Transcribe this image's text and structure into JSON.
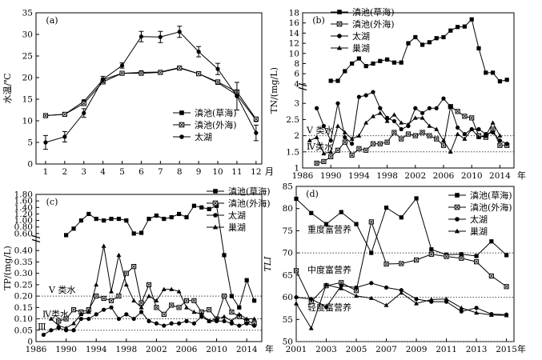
{
  "chart_data": [
    {
      "id": "a",
      "type": "line",
      "panel_label": "(a)",
      "xlabel": "月",
      "ylabel": "水温/℃",
      "xlim": [
        0.5,
        12.3
      ],
      "ylim": [
        0,
        35
      ],
      "xticks": [
        1,
        2,
        3,
        4,
        5,
        6,
        7,
        8,
        9,
        10,
        11,
        12
      ],
      "yticks": [
        0,
        5,
        10,
        15,
        20,
        25,
        30,
        35
      ],
      "legend_position": "lower-right",
      "series": [
        {
          "name": "滇池(草海)",
          "marker": "square",
          "x": [
            1,
            2,
            3,
            4,
            5,
            6,
            7,
            8,
            9,
            10,
            11,
            12
          ],
          "values": [
            11.2,
            11.5,
            14.5,
            19.5,
            21.0,
            21.2,
            21.3,
            22.3,
            20.9,
            18.8,
            16.0,
            10.2
          ]
        },
        {
          "name": "滇池(外海)",
          "marker": "square-open",
          "x": [
            1,
            2,
            3,
            4,
            5,
            6,
            7,
            8,
            9,
            10,
            11,
            12
          ],
          "values": [
            11.2,
            11.5,
            14.0,
            19.0,
            21.0,
            21.0,
            21.2,
            22.2,
            20.9,
            19.0,
            16.7,
            10.4
          ]
        },
        {
          "name": "太湖",
          "marker": "circle",
          "x": [
            1,
            2,
            3,
            4,
            5,
            6,
            7,
            8,
            9,
            10,
            11,
            12
          ],
          "values": [
            5.0,
            6.3,
            11.8,
            19.6,
            22.8,
            29.5,
            29.4,
            30.6,
            26.0,
            22.0,
            15.7,
            7.2
          ],
          "error": [
            1.6,
            1.2,
            1.0,
            0.7,
            0.6,
            1.2,
            1.3,
            1.3,
            1.2,
            1.3,
            3.2,
            1.8
          ]
        }
      ]
    },
    {
      "id": "b",
      "type": "line",
      "panel_label": "(b)",
      "xlabel": "年",
      "ylabel": "TN/(mg/L)",
      "xlim": [
        1986,
        2016
      ],
      "xticks": [
        1986,
        1990,
        1994,
        1998,
        2002,
        2006,
        2010,
        2014
      ],
      "y_axis_break": true,
      "ylim_lower": [
        1.0,
        3.5
      ],
      "yticks_lower": [
        1.0,
        1.5,
        2.0,
        2.5,
        3.0
      ],
      "ylim_upper": [
        3.5,
        18.0
      ],
      "yticks_upper": [
        4,
        6,
        8,
        10,
        12,
        14,
        16,
        18
      ],
      "legend_position": "top-left",
      "reference_lines": [
        {
          "label": "V 类水",
          "y": 2.0
        },
        {
          "label": "Ⅳ类水",
          "y": 1.5
        }
      ],
      "series": [
        {
          "name": "滇池(草海)",
          "marker": "square",
          "x": [
            1990,
            1991,
            1992,
            1993,
            1994,
            1995,
            1996,
            1997,
            1998,
            1999,
            2000,
            2001,
            2002,
            2003,
            2004,
            2005,
            2006,
            2007,
            2008,
            2009,
            2010,
            2011,
            2012,
            2013,
            2014,
            2015
          ],
          "values": [
            4.6,
            4.6,
            6.5,
            8.0,
            9.0,
            7.5,
            8.0,
            8.5,
            8.8,
            8.2,
            8.2,
            12.0,
            13.2,
            11.7,
            12.2,
            13.0,
            13.2,
            14.5,
            15.2,
            15.3,
            16.7,
            11.0,
            6.2,
            6.2,
            4.5,
            4.8
          ]
        },
        {
          "name": "滇池(外海)",
          "marker": "square-open",
          "x": [
            1988,
            1989,
            1990,
            1991,
            1992,
            1993,
            1994,
            1995,
            1996,
            1997,
            1998,
            1999,
            2000,
            2001,
            2002,
            2003,
            2004,
            2005,
            2006,
            2007,
            2008,
            2009,
            2010,
            2011,
            2012,
            2013,
            2014,
            2015
          ],
          "values": [
            1.15,
            1.2,
            1.35,
            1.55,
            1.8,
            1.4,
            1.6,
            1.55,
            1.75,
            1.75,
            1.8,
            2.1,
            1.9,
            2.05,
            2.0,
            2.1,
            2.0,
            1.9,
            1.7,
            2.9,
            2.75,
            2.6,
            2.55,
            2.0,
            1.95,
            2.2,
            1.7,
            1.7
          ]
        },
        {
          "name": "太湖",
          "marker": "circle",
          "x": [
            1988,
            1989,
            1990,
            1991,
            1992,
            1993,
            1994,
            1995,
            1996,
            1997,
            1998,
            1999,
            2000,
            2001,
            2002,
            2003,
            2004,
            2005,
            2006,
            2007,
            2008,
            2009,
            2010,
            2011,
            2012,
            2013,
            2014,
            2015
          ],
          "values": [
            2.85,
            2.3,
            1.85,
            3.0,
            1.95,
            1.75,
            3.2,
            3.25,
            3.35,
            2.85,
            2.55,
            2.45,
            2.2,
            2.3,
            2.85,
            2.7,
            2.85,
            2.85,
            3.15,
            2.9,
            2.25,
            2.05,
            2.2,
            2.2,
            2.05,
            2.1,
            1.85,
            1.75
          ]
        },
        {
          "name": "巢湖",
          "marker": "triangle",
          "x": [
            1987,
            1988,
            1989,
            1990,
            1991,
            1992,
            1993,
            1994,
            1995,
            1996,
            1997,
            1998,
            1999,
            2000,
            2001,
            2002,
            2003,
            2004,
            2005,
            2006,
            2007,
            2008,
            2009,
            2010,
            2011,
            2012,
            2013,
            2014
          ],
          "values": [
            1.85,
            1.95,
            1.45,
            1.5,
            2.3,
            2.1,
            1.9,
            2.0,
            2.4,
            2.6,
            2.7,
            2.45,
            2.65,
            2.4,
            2.35,
            2.55,
            2.55,
            2.3,
            2.2,
            1.85,
            1.5,
            2.05,
            1.9,
            2.2,
            1.95,
            2.0,
            2.4,
            2.0
          ]
        }
      ]
    },
    {
      "id": "c",
      "type": "line",
      "panel_label": "(c)",
      "xlabel": "年",
      "ylabel": "TP/(mg/L)",
      "xlim": [
        1986,
        2016
      ],
      "xticks": [
        1986,
        1990,
        1994,
        1998,
        2002,
        2006,
        2010,
        2014
      ],
      "y_axis_break": true,
      "ylim_lower": [
        0,
        0.45
      ],
      "yticks_lower": [
        0,
        0.05,
        0.1,
        0.15,
        0.2,
        0.25,
        0.3,
        0.35,
        0.4
      ],
      "ylim_upper": [
        0.45,
        1.8
      ],
      "yticks_upper": [
        0.6,
        0.8,
        1.0,
        1.2,
        1.4,
        1.6,
        1.8
      ],
      "legend_position": "top-right",
      "reference_lines": [
        {
          "label": "V 类水",
          "y": 0.2
        },
        {
          "label": "Ⅳ类水",
          "y": 0.1
        },
        {
          "label": "Ⅲ",
          "y": 0.05
        }
      ],
      "series": [
        {
          "name": "滇池(草海)",
          "marker": "square",
          "x": [
            1990,
            1991,
            1992,
            1993,
            1994,
            1995,
            1996,
            1997,
            1998,
            1999,
            2000,
            2001,
            2002,
            2003,
            2004,
            2005,
            2006,
            2007,
            2008,
            2009,
            2010,
            2011,
            2012,
            2013,
            2014,
            2015
          ],
          "values": [
            0.55,
            0.75,
            1.0,
            1.2,
            1.05,
            1.0,
            1.05,
            1.05,
            1.0,
            0.6,
            0.62,
            1.05,
            1.15,
            1.05,
            1.1,
            1.2,
            1.1,
            1.45,
            1.4,
            1.35,
            1.45,
            0.38,
            0.2,
            0.15,
            0.27,
            0.18
          ]
        },
        {
          "name": "滇池(外海)",
          "marker": "square-open",
          "x": [
            1989,
            1990,
            1991,
            1992,
            1993,
            1994,
            1995,
            1996,
            1997,
            1998,
            1999,
            2000,
            2001,
            2002,
            2003,
            2004,
            2005,
            2006,
            2007,
            2008,
            2009,
            2010,
            2011,
            2012,
            2013,
            2014,
            2015
          ],
          "values": [
            0.09,
            0.1,
            0.14,
            0.13,
            0.14,
            0.2,
            0.19,
            0.18,
            0.2,
            0.3,
            0.33,
            0.17,
            0.25,
            0.15,
            0.12,
            0.16,
            0.15,
            0.18,
            0.18,
            0.13,
            0.14,
            0.1,
            0.2,
            0.13,
            0.11,
            0.09,
            0.08
          ]
        },
        {
          "name": "太湖",
          "marker": "circle",
          "x": [
            1987,
            1988,
            1989,
            1990,
            1991,
            1992,
            1993,
            1994,
            1995,
            1996,
            1997,
            1998,
            1999,
            2000,
            2001,
            2002,
            2003,
            2004,
            2005,
            2006,
            2007,
            2008,
            2009,
            2010,
            2011,
            2012,
            2013,
            2014,
            2015
          ],
          "values": [
            0.03,
            0.05,
            0.06,
            0.05,
            0.05,
            0.1,
            0.1,
            0.12,
            0.14,
            0.15,
            0.1,
            0.12,
            0.1,
            0.13,
            0.09,
            0.08,
            0.07,
            0.08,
            0.08,
            0.09,
            0.08,
            0.11,
            0.09,
            0.09,
            0.09,
            0.08,
            0.07,
            0.08,
            0.07
          ]
        },
        {
          "name": "巢湖",
          "marker": "triangle",
          "x": [
            1988,
            1989,
            1990,
            1991,
            1992,
            1993,
            1994,
            1995,
            1996,
            1997,
            1998,
            1999,
            2000,
            2001,
            2002,
            2003,
            2004,
            2005,
            2006,
            2007,
            2008,
            2009,
            2010,
            2011,
            2012,
            2013,
            2014,
            2015
          ],
          "values": [
            0.1,
            0.07,
            0.06,
            0.08,
            0.12,
            0.13,
            0.25,
            0.42,
            0.22,
            0.38,
            0.25,
            0.18,
            0.15,
            0.2,
            0.18,
            0.23,
            0.23,
            0.22,
            0.15,
            0.13,
            0.12,
            0.09,
            0.1,
            0.11,
            0.09,
            0.12,
            0.1,
            0.1
          ]
        }
      ]
    },
    {
      "id": "d",
      "type": "line",
      "panel_label": "(d)",
      "xlabel": "年",
      "ylabel": "TLI",
      "xlim": [
        2001,
        2015.5
      ],
      "xticks": [
        2001,
        2003,
        2005,
        2007,
        2009,
        2011,
        2013,
        2015
      ],
      "ylim": [
        50,
        85
      ],
      "yticks": [
        50,
        55,
        60,
        65,
        70,
        75,
        80,
        85
      ],
      "legend_position": "top-right",
      "zone_lines": [
        70,
        60,
        50
      ],
      "zone_labels": [
        "重度富营养",
        "中度富营养",
        "轻度富营养"
      ],
      "series": [
        {
          "name": "滇池(草海)",
          "marker": "square",
          "x": [
            2001,
            2002,
            2003,
            2004,
            2005,
            2006,
            2007,
            2008,
            2009,
            2010,
            2011,
            2012,
            2013,
            2014,
            2015
          ],
          "values": [
            82.2,
            79.0,
            76.5,
            79.2,
            76.5,
            70.0,
            80.2,
            78.0,
            82.3,
            70.8,
            69.6,
            69.7,
            69.3,
            72.6,
            69.5
          ]
        },
        {
          "name": "滇池(外海)",
          "marker": "square-open",
          "x": [
            2001,
            2002,
            2003,
            2004,
            2005,
            2006,
            2007,
            2008,
            2009,
            2010,
            2011,
            2012,
            2013,
            2014,
            2015
          ],
          "values": [
            66.0,
            59.0,
            62.6,
            63.3,
            61.5,
            77.0,
            67.5,
            67.6,
            68.4,
            69.7,
            69.2,
            68.8,
            68.0,
            64.8,
            62.4
          ]
        },
        {
          "name": "太湖",
          "marker": "circle",
          "x": [
            2001,
            2002,
            2003,
            2004,
            2005,
            2006,
            2007,
            2008,
            2009,
            2010,
            2011,
            2012,
            2013,
            2014,
            2015
          ],
          "values": [
            60.0,
            59.6,
            57.8,
            62.6,
            62.2,
            63.2,
            62.2,
            61.6,
            59.6,
            59.0,
            59.0,
            56.8,
            57.6,
            56.2,
            56.1
          ]
        },
        {
          "name": "巢湖",
          "marker": "triangle",
          "x": [
            2001,
            2002,
            2003,
            2004,
            2005,
            2006,
            2007,
            2008,
            2009,
            2010,
            2011,
            2012,
            2013,
            2014,
            2015
          ],
          "values": [
            58.6,
            53.0,
            62.8,
            62.0,
            60.3,
            59.8,
            58.2,
            61.0,
            58.6,
            59.5,
            59.6,
            57.6,
            56.5,
            56.0,
            55.9
          ]
        }
      ]
    }
  ]
}
